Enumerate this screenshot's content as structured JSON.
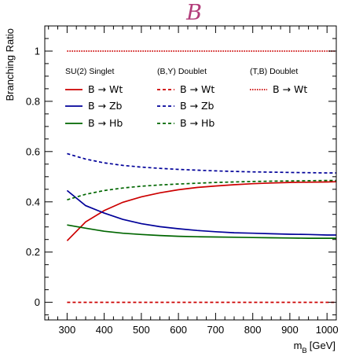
{
  "chart_data": {
    "type": "line",
    "title": "B",
    "xlabel_main": "m",
    "xlabel_sub": "B",
    "xlabel_unit": "[GeV]",
    "ylabel": "Branching Ratio",
    "xlim": [
      240,
      1025
    ],
    "ylim": [
      -0.07,
      1.1
    ],
    "x_major_ticks": [
      300,
      400,
      500,
      600,
      700,
      800,
      900,
      1000
    ],
    "x_minor_step": 25,
    "y_major_ticks": [
      0,
      0.2,
      0.4,
      0.6,
      0.8,
      1
    ],
    "y_tick_labels": [
      "0",
      "0.2",
      "0.4",
      "0.6",
      "0.8",
      "1"
    ],
    "y_minor_step": 0.05,
    "legend_groups": [
      {
        "header": "SU(2) Singlet"
      },
      {
        "header": "(B,Y) Doublet"
      },
      {
        "header": "(T,B) Doublet"
      }
    ],
    "series": [
      {
        "name": "B → Wt",
        "group": 0,
        "color": "#cc0000",
        "style": "solid",
        "x": [
          300,
          350,
          400,
          450,
          500,
          550,
          600,
          650,
          700,
          750,
          800,
          850,
          900,
          950,
          1000,
          1025
        ],
        "y": [
          0.245,
          0.32,
          0.365,
          0.398,
          0.42,
          0.436,
          0.448,
          0.457,
          0.463,
          0.468,
          0.472,
          0.475,
          0.477,
          0.478,
          0.479,
          0.48
        ]
      },
      {
        "name": "B → Zb",
        "group": 0,
        "color": "#000099",
        "style": "solid",
        "x": [
          300,
          350,
          400,
          450,
          500,
          550,
          600,
          650,
          700,
          750,
          800,
          850,
          900,
          950,
          1000,
          1025
        ],
        "y": [
          0.445,
          0.385,
          0.355,
          0.33,
          0.313,
          0.301,
          0.293,
          0.286,
          0.281,
          0.277,
          0.275,
          0.273,
          0.271,
          0.27,
          0.268,
          0.268
        ]
      },
      {
        "name": "B → Hb",
        "group": 0,
        "color": "#006600",
        "style": "solid",
        "x": [
          300,
          350,
          400,
          450,
          500,
          550,
          600,
          650,
          700,
          750,
          800,
          850,
          900,
          950,
          1000,
          1025
        ],
        "y": [
          0.308,
          0.295,
          0.283,
          0.275,
          0.27,
          0.266,
          0.263,
          0.261,
          0.26,
          0.259,
          0.258,
          0.257,
          0.256,
          0.255,
          0.255,
          0.255
        ]
      },
      {
        "name": "B → Wt",
        "group": 1,
        "color": "#cc0000",
        "style": "dashed",
        "x": [
          300,
          1025
        ],
        "y": [
          0,
          0
        ]
      },
      {
        "name": "B → Zb",
        "group": 1,
        "color": "#000099",
        "style": "dashed",
        "x": [
          300,
          350,
          400,
          450,
          500,
          550,
          600,
          650,
          700,
          750,
          800,
          850,
          900,
          950,
          1000,
          1025
        ],
        "y": [
          0.592,
          0.57,
          0.555,
          0.545,
          0.538,
          0.533,
          0.529,
          0.526,
          0.523,
          0.521,
          0.519,
          0.518,
          0.517,
          0.516,
          0.515,
          0.515
        ]
      },
      {
        "name": "B → Hb",
        "group": 1,
        "color": "#006600",
        "style": "dashed",
        "x": [
          300,
          350,
          400,
          450,
          500,
          550,
          600,
          650,
          700,
          750,
          800,
          850,
          900,
          950,
          1000,
          1025
        ],
        "y": [
          0.408,
          0.43,
          0.445,
          0.455,
          0.462,
          0.467,
          0.471,
          0.474,
          0.477,
          0.479,
          0.481,
          0.482,
          0.483,
          0.484,
          0.485,
          0.485
        ]
      },
      {
        "name": "B → Wt",
        "group": 2,
        "color": "#cc0000",
        "style": "dotted",
        "x": [
          300,
          1025
        ],
        "y": [
          1,
          1
        ]
      }
    ]
  }
}
